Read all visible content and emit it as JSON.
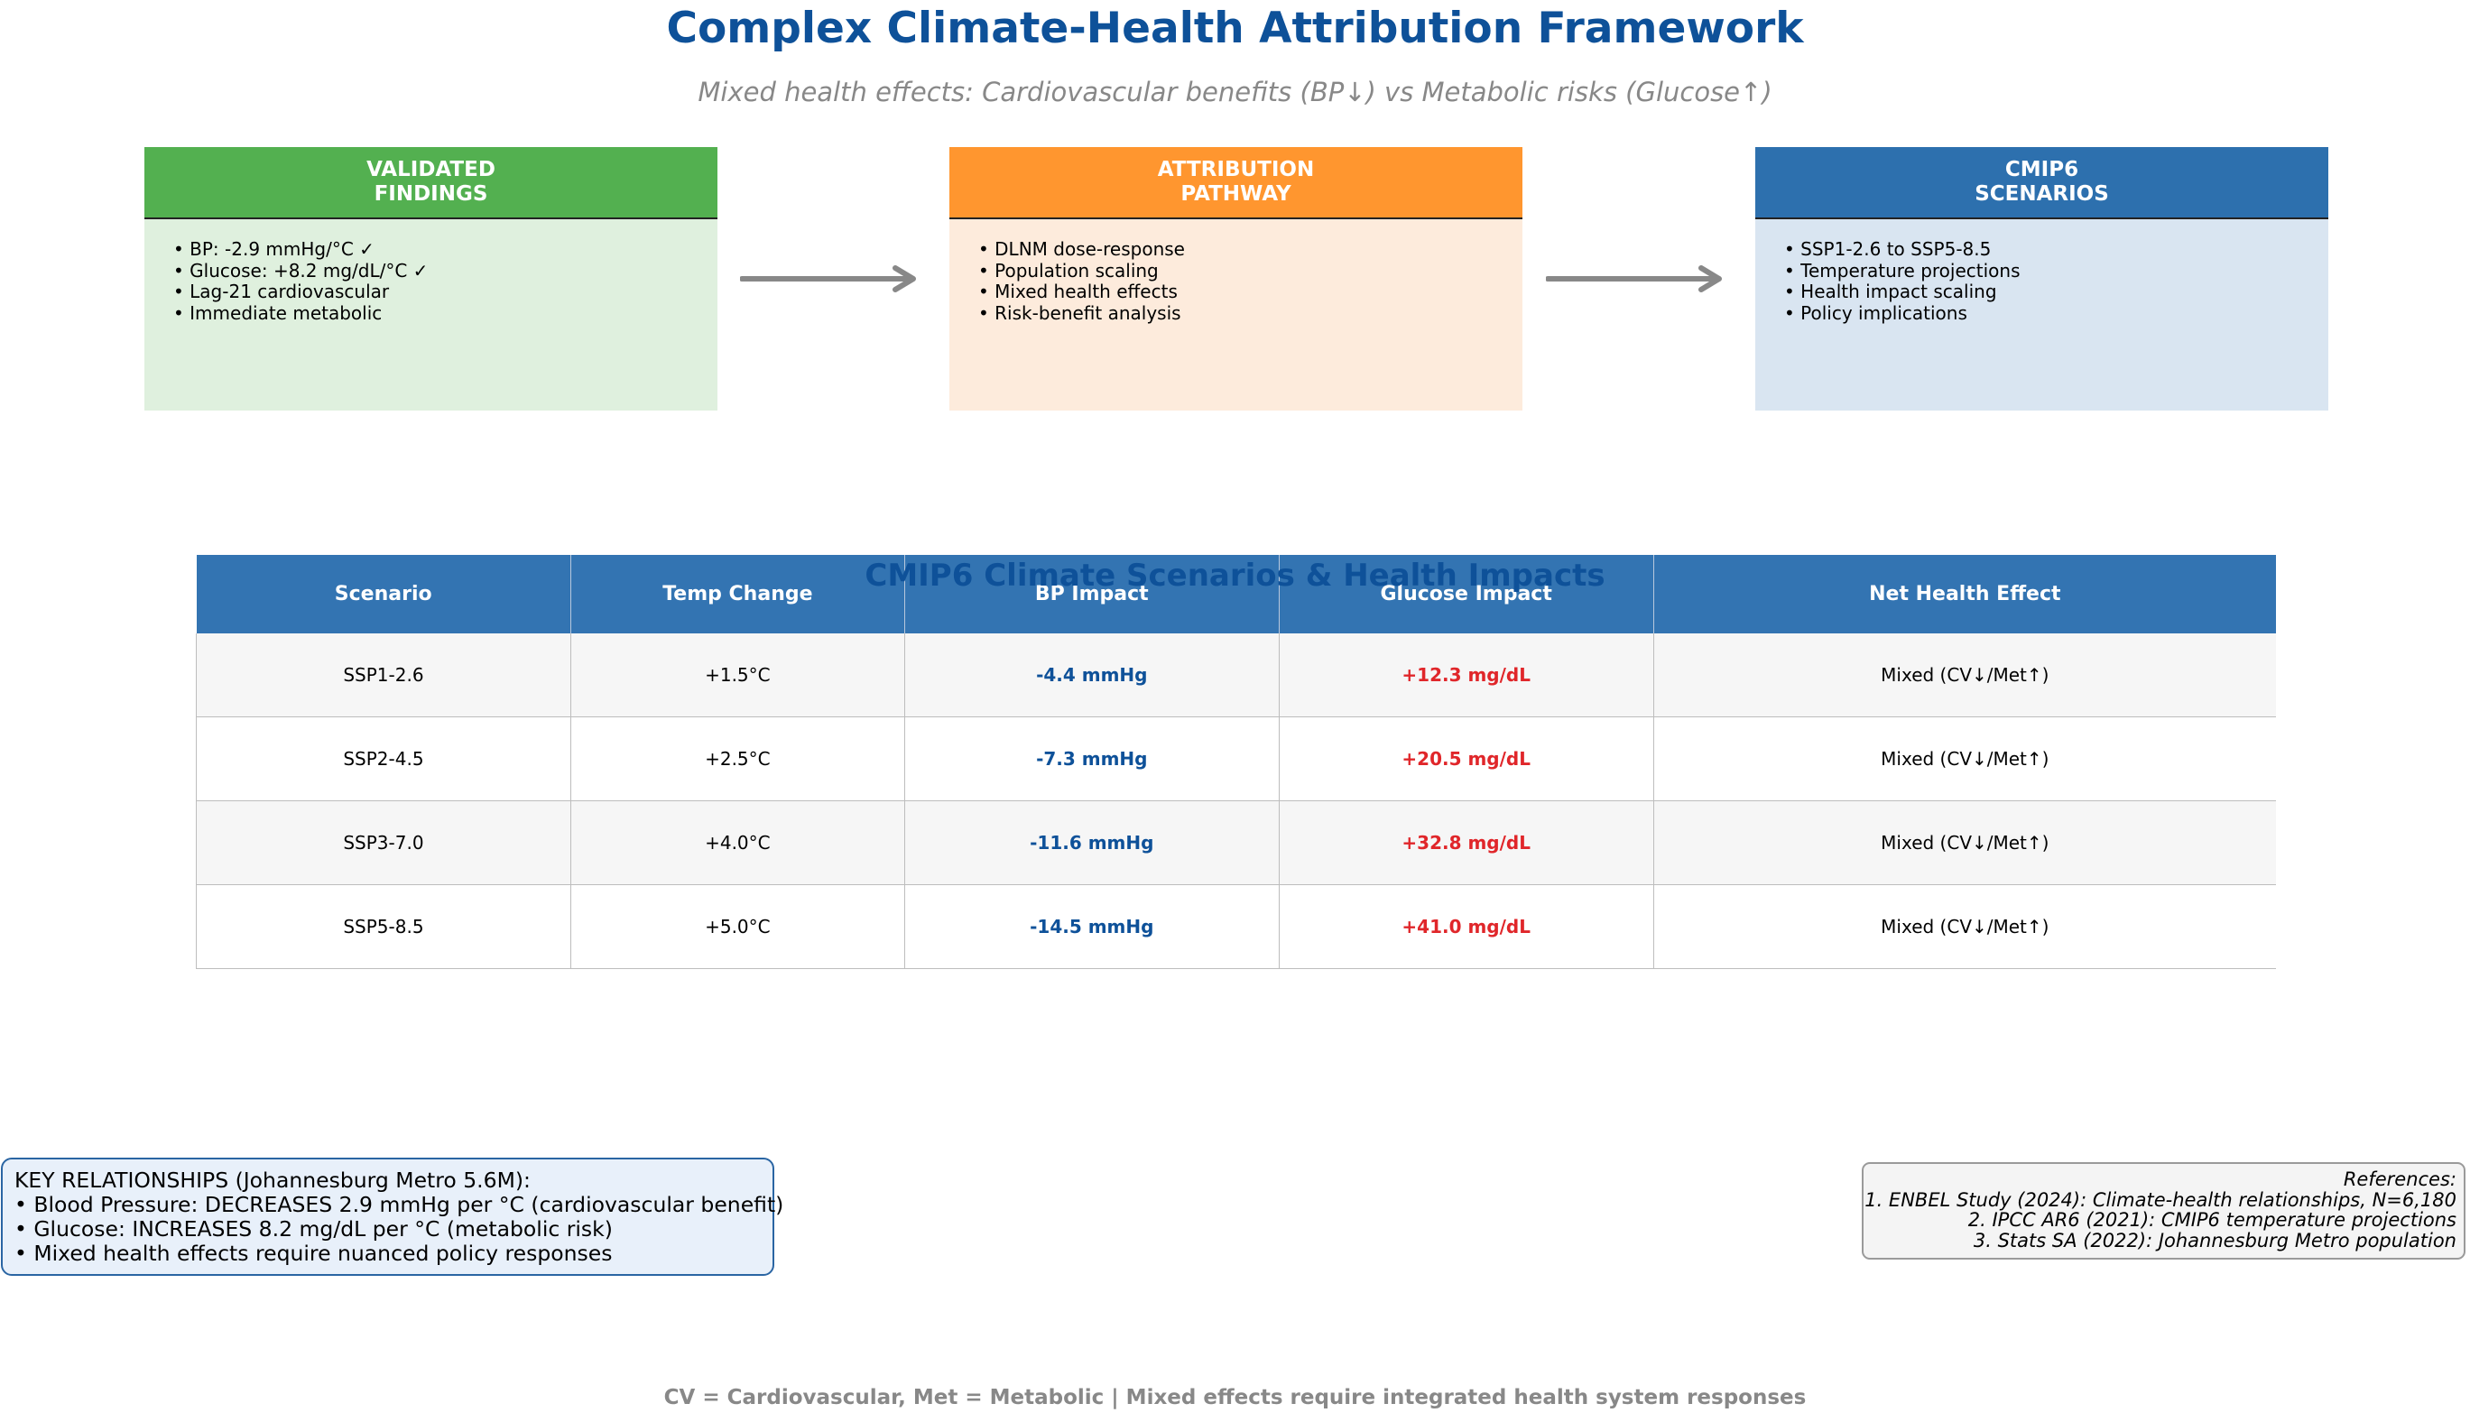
{
  "title": "Complex Climate-Health Attribution Framework",
  "subtitle": "Mixed health effects: Cardiovascular benefits (BP↓) vs Metabolic risks (Glucose↑)",
  "boxes": [
    {
      "header_line1": "VALIDATED",
      "header_line2": "FINDINGS",
      "header_color": "#53b050",
      "body_color": "#dff0de",
      "items": [
        "• BP: -2.9 mmHg/°C ✓",
        "• Glucose: +8.2 mg/dL/°C ✓",
        "• Lag-21 cardiovascular",
        "• Immediate metabolic"
      ]
    },
    {
      "header_line1": "ATTRIBUTION",
      "header_line2": "PATHWAY",
      "header_color": "#ff962f",
      "body_color": "#fdebdc",
      "items": [
        "• DLNM dose-response",
        "• Population scaling",
        "• Mixed health effects",
        "• Risk-benefit analysis"
      ]
    },
    {
      "header_line1": "CMIP6",
      "header_line2": "SCENARIOS",
      "header_color": "#2d70ae",
      "body_color": "#d9e5f1",
      "items": [
        "• SSP1-2.6 to SSP5-8.5",
        "• Temperature projections",
        "• Health impact scaling",
        "• Policy implications"
      ]
    }
  ],
  "section_title": "CMIP6 Climate Scenarios & Health Impacts",
  "table": {
    "headers": [
      "Scenario",
      "Temp Change",
      "BP Impact",
      "Glucose Impact",
      "Net Health Effect"
    ],
    "rows": [
      [
        "SSP1-2.6",
        "+1.5°C",
        "-4.4 mmHg",
        "+12.3 mg/dL",
        "Mixed (CV↓/Met↑)"
      ],
      [
        "SSP2-4.5",
        "+2.5°C",
        "-7.3 mmHg",
        "+20.5 mg/dL",
        "Mixed (CV↓/Met↑)"
      ],
      [
        "SSP3-7.0",
        "+4.0°C",
        "-11.6 mmHg",
        "+32.8 mg/dL",
        "Mixed (CV↓/Met↑)"
      ],
      [
        "SSP5-8.5",
        "+5.0°C",
        "-14.5 mmHg",
        "+41.0 mg/dL",
        "Mixed (CV↓/Met↑)"
      ]
    ]
  },
  "key_relationships": {
    "lines": [
      "KEY RELATIONSHIPS (Johannesburg Metro 5.6M):",
      "• Blood Pressure: DECREASES 2.9 mmHg per °C (cardiovascular benefit)",
      "• Glucose: INCREASES 8.2 mg/dL per °C (metabolic risk)",
      "• Mixed health effects require nuanced policy responses"
    ]
  },
  "references": {
    "lines": [
      "References:",
      "1. ENBEL Study (2024): Climate-health relationships, N=6,180",
      "2. IPCC AR6 (2021): CMIP6 temperature projections",
      "3. Stats SA (2022): Johannesburg Metro population"
    ]
  },
  "footer": "CV = Cardiovascular, Met = Metabolic | Mixed effects require integrated health system responses",
  "colors": {
    "title": "#0e5199",
    "bp_value": "#0e5199",
    "glucose_value": "#e0262a",
    "arrow": "#888888",
    "table_header": "#3374b2"
  }
}
